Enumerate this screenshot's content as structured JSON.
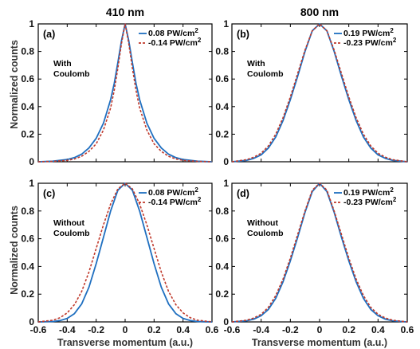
{
  "column_titles": [
    "410 nm",
    "800 nm"
  ],
  "ylabel": "Normalized counts",
  "xlabel": "Transverse momentum (a.u.)",
  "colors": {
    "solid": "#1f6fc0",
    "dashed": "#c0392b"
  },
  "chart_data": [
    {
      "type": "line",
      "panel_label": "(a)",
      "annotation": [
        "With",
        "Coulomb"
      ],
      "xlim": [
        -0.6,
        0.6
      ],
      "ylim": [
        0,
        1
      ],
      "xticks": [
        "-0.6",
        "-0.4",
        "-0.2",
        "0",
        "0.2",
        "0.4",
        "0.6"
      ],
      "yticks": [
        "0",
        "0.2",
        "0.4",
        "0.6",
        "0.8",
        "1"
      ],
      "legend_position": "top-right",
      "x": [
        -0.6,
        -0.5,
        -0.4,
        -0.35,
        -0.3,
        -0.25,
        -0.2,
        -0.15,
        -0.1,
        -0.075,
        -0.05,
        -0.025,
        0,
        0.025,
        0.05,
        0.075,
        0.1,
        0.15,
        0.2,
        0.25,
        0.3,
        0.35,
        0.4,
        0.5,
        0.6
      ],
      "series": [
        {
          "name": "0.08 PW/cm",
          "sup": "2",
          "style": "solid",
          "values": [
            0.0,
            0.004,
            0.016,
            0.03,
            0.055,
            0.1,
            0.17,
            0.28,
            0.45,
            0.57,
            0.72,
            0.88,
            1.0,
            0.88,
            0.72,
            0.57,
            0.45,
            0.28,
            0.17,
            0.1,
            0.055,
            0.03,
            0.016,
            0.004,
            0.0
          ]
        },
        {
          "name": "-0.14 PW/cm",
          "sup": "2",
          "style": "dashed",
          "values": [
            0.0,
            0.003,
            0.01,
            0.02,
            0.04,
            0.075,
            0.13,
            0.23,
            0.39,
            0.52,
            0.68,
            0.86,
            1.0,
            0.86,
            0.68,
            0.52,
            0.39,
            0.23,
            0.13,
            0.075,
            0.04,
            0.02,
            0.01,
            0.003,
            0.0
          ]
        }
      ]
    },
    {
      "type": "line",
      "panel_label": "(b)",
      "annotation": [
        "With",
        "Coulomb"
      ],
      "xlim": [
        -0.6,
        0.6
      ],
      "ylim": [
        0,
        1
      ],
      "xticks": [
        "-0.6",
        "-0.4",
        "-0.2",
        "0",
        "0.2",
        "0.4",
        "0.6"
      ],
      "yticks": [
        "0",
        "0.2",
        "0.4",
        "0.6",
        "0.8",
        "1"
      ],
      "legend_position": "top-right",
      "x": [
        -0.6,
        -0.5,
        -0.45,
        -0.4,
        -0.35,
        -0.3,
        -0.25,
        -0.2,
        -0.15,
        -0.1,
        -0.05,
        0,
        0.05,
        0.1,
        0.15,
        0.2,
        0.25,
        0.3,
        0.35,
        0.4,
        0.45,
        0.5,
        0.6
      ],
      "series": [
        {
          "name": "0.19 PW/cm",
          "sup": "2",
          "style": "solid",
          "values": [
            0.0,
            0.01,
            0.025,
            0.05,
            0.1,
            0.18,
            0.3,
            0.45,
            0.62,
            0.8,
            0.95,
            1.0,
            0.95,
            0.8,
            0.62,
            0.45,
            0.3,
            0.18,
            0.1,
            0.05,
            0.025,
            0.01,
            0.0
          ]
        },
        {
          "name": "-0.23 PW/cm",
          "sup": "2",
          "style": "dashed",
          "values": [
            0.0,
            0.015,
            0.033,
            0.062,
            0.115,
            0.2,
            0.32,
            0.47,
            0.64,
            0.81,
            0.95,
            1.0,
            0.95,
            0.81,
            0.64,
            0.47,
            0.32,
            0.2,
            0.115,
            0.062,
            0.033,
            0.015,
            0.0
          ]
        }
      ]
    },
    {
      "type": "line",
      "panel_label": "(c)",
      "annotation": [
        "Without",
        "Coulomb"
      ],
      "xlim": [
        -0.6,
        0.6
      ],
      "ylim": [
        0,
        1
      ],
      "xticks": [
        "-0.6",
        "-0.4",
        "-0.2",
        "0",
        "0.2",
        "0.4",
        "0.6"
      ],
      "yticks": [
        "0",
        "0.2",
        "0.4",
        "0.6",
        "0.8",
        "1"
      ],
      "legend_position": "top-right",
      "x": [
        -0.6,
        -0.5,
        -0.45,
        -0.4,
        -0.35,
        -0.3,
        -0.25,
        -0.2,
        -0.15,
        -0.1,
        -0.05,
        0,
        0.05,
        0.1,
        0.15,
        0.2,
        0.25,
        0.3,
        0.35,
        0.4,
        0.45,
        0.5,
        0.6
      ],
      "series": [
        {
          "name": "0.08 PW/cm",
          "sup": "2",
          "style": "solid",
          "values": [
            0.0,
            0.003,
            0.01,
            0.025,
            0.06,
            0.13,
            0.25,
            0.42,
            0.61,
            0.8,
            0.95,
            1.0,
            0.95,
            0.8,
            0.61,
            0.42,
            0.25,
            0.13,
            0.06,
            0.025,
            0.01,
            0.003,
            0.0
          ]
        },
        {
          "name": "-0.14 PW/cm",
          "sup": "2",
          "style": "dashed",
          "values": [
            0.0,
            0.012,
            0.03,
            0.065,
            0.125,
            0.22,
            0.36,
            0.53,
            0.7,
            0.85,
            0.96,
            1.0,
            0.96,
            0.85,
            0.7,
            0.53,
            0.36,
            0.22,
            0.125,
            0.065,
            0.03,
            0.012,
            0.0
          ]
        }
      ]
    },
    {
      "type": "line",
      "panel_label": "(d)",
      "annotation": [
        "Without",
        "Coulomb"
      ],
      "xlim": [
        -0.6,
        0.6
      ],
      "ylim": [
        0,
        1
      ],
      "xticks": [
        "-0.6",
        "-0.4",
        "-0.2",
        "0",
        "0.2",
        "0.4",
        "0.6"
      ],
      "yticks": [
        "0",
        "0.2",
        "0.4",
        "0.6",
        "0.8",
        "1"
      ],
      "legend_position": "top-right",
      "x": [
        -0.6,
        -0.5,
        -0.45,
        -0.4,
        -0.35,
        -0.3,
        -0.25,
        -0.2,
        -0.15,
        -0.1,
        -0.05,
        0,
        0.05,
        0.1,
        0.15,
        0.2,
        0.25,
        0.3,
        0.35,
        0.4,
        0.45,
        0.5,
        0.6
      ],
      "series": [
        {
          "name": "0.19 PW/cm",
          "sup": "2",
          "style": "solid",
          "values": [
            0.0,
            0.008,
            0.02,
            0.045,
            0.09,
            0.17,
            0.29,
            0.44,
            0.61,
            0.79,
            0.94,
            1.0,
            0.94,
            0.79,
            0.61,
            0.44,
            0.29,
            0.17,
            0.09,
            0.045,
            0.02,
            0.008,
            0.0
          ]
        },
        {
          "name": "-0.23 PW/cm",
          "sup": "2",
          "style": "dashed",
          "values": [
            0.0,
            0.012,
            0.028,
            0.055,
            0.105,
            0.19,
            0.31,
            0.46,
            0.63,
            0.8,
            0.95,
            1.0,
            0.95,
            0.8,
            0.63,
            0.46,
            0.31,
            0.19,
            0.105,
            0.055,
            0.028,
            0.012,
            0.0
          ]
        }
      ]
    }
  ]
}
